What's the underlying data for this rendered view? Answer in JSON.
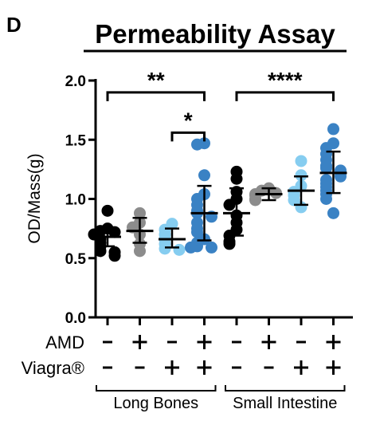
{
  "panel_letter": "D",
  "chart_data": {
    "type": "scatter",
    "title": "Permeability Assay",
    "ylabel": "OD/Mass(g)",
    "xlabel": "",
    "ylim": [
      0,
      2.0
    ],
    "yticks": [
      0.0,
      0.5,
      1.0,
      1.5,
      2.0
    ],
    "ytick_labels": [
      "0.0",
      "0.5",
      "1.0",
      "1.5",
      "2.0"
    ],
    "grid": false,
    "legend": "none",
    "factor_rows": [
      {
        "label": "AMD",
        "values": [
          "-",
          "+",
          "-",
          "+",
          "-",
          "+",
          "-",
          "+"
        ]
      },
      {
        "label": "Viagra®",
        "values": [
          "-",
          "-",
          "+",
          "+",
          "-",
          "-",
          "+",
          "+"
        ]
      }
    ],
    "group_labels": [
      {
        "label": "Long Bones",
        "from": 0,
        "to": 3
      },
      {
        "label": "Small Intestine",
        "from": 4,
        "to": 7
      }
    ],
    "series": [
      {
        "color": "#000000",
        "mean": 0.68,
        "sd_low": 0.6,
        "sd_high": 0.75,
        "values": [
          0.9,
          0.75,
          0.73,
          0.72,
          0.7,
          0.66,
          0.63,
          0.6,
          0.56,
          0.55,
          0.52
        ]
      },
      {
        "color": "#8c8c8c",
        "mean": 0.73,
        "sd_low": 0.63,
        "sd_high": 0.84,
        "values": [
          0.88,
          0.8,
          0.76,
          0.7,
          0.62,
          0.56
        ]
      },
      {
        "color": "#86cdf0",
        "mean": 0.66,
        "sd_low": 0.59,
        "sd_high": 0.75,
        "values": [
          0.79,
          0.74,
          0.7,
          0.66,
          0.62,
          0.58,
          0.57
        ]
      },
      {
        "color": "#3a82c4",
        "mean": 0.88,
        "sd_low": 0.65,
        "sd_high": 1.11,
        "values": [
          1.47,
          1.46,
          1.2,
          1.04,
          1.0,
          0.95,
          0.9,
          0.88,
          0.85,
          0.8,
          0.75,
          0.72,
          0.66,
          0.63,
          0.6,
          0.59,
          0.59
        ]
      },
      {
        "color": "#000000",
        "mean": 0.88,
        "sd_low": 0.69,
        "sd_high": 1.09,
        "values": [
          1.23,
          1.17,
          1.06,
          1.0,
          0.95,
          0.86,
          0.8,
          0.74,
          0.69,
          0.64,
          0.62
        ]
      },
      {
        "color": "#8c8c8c",
        "mean": 1.04,
        "sd_low": 0.99,
        "sd_high": 1.09,
        "values": [
          1.09,
          1.07,
          1.05,
          1.04,
          1.03,
          1.0,
          0.99
        ]
      },
      {
        "color": "#86cdf0",
        "mean": 1.07,
        "sd_low": 0.95,
        "sd_high": 1.19,
        "values": [
          1.32,
          1.2,
          1.11,
          1.06,
          1.03,
          0.99,
          0.93
        ]
      },
      {
        "color": "#3a82c4",
        "mean": 1.22,
        "sd_low": 1.05,
        "sd_high": 1.4,
        "values": [
          1.59,
          1.47,
          1.43,
          1.38,
          1.33,
          1.28,
          1.26,
          1.24,
          1.22,
          1.19,
          1.16,
          1.13,
          1.1,
          1.07,
          1.04,
          1.0,
          0.88
        ]
      }
    ],
    "annotations": [
      {
        "label": "**",
        "from": 0,
        "to": 3,
        "y": 1.9
      },
      {
        "label": "*",
        "from": 2,
        "to": 3,
        "y": 1.56
      },
      {
        "label": "****",
        "from": 4,
        "to": 7,
        "y": 1.9
      }
    ]
  }
}
